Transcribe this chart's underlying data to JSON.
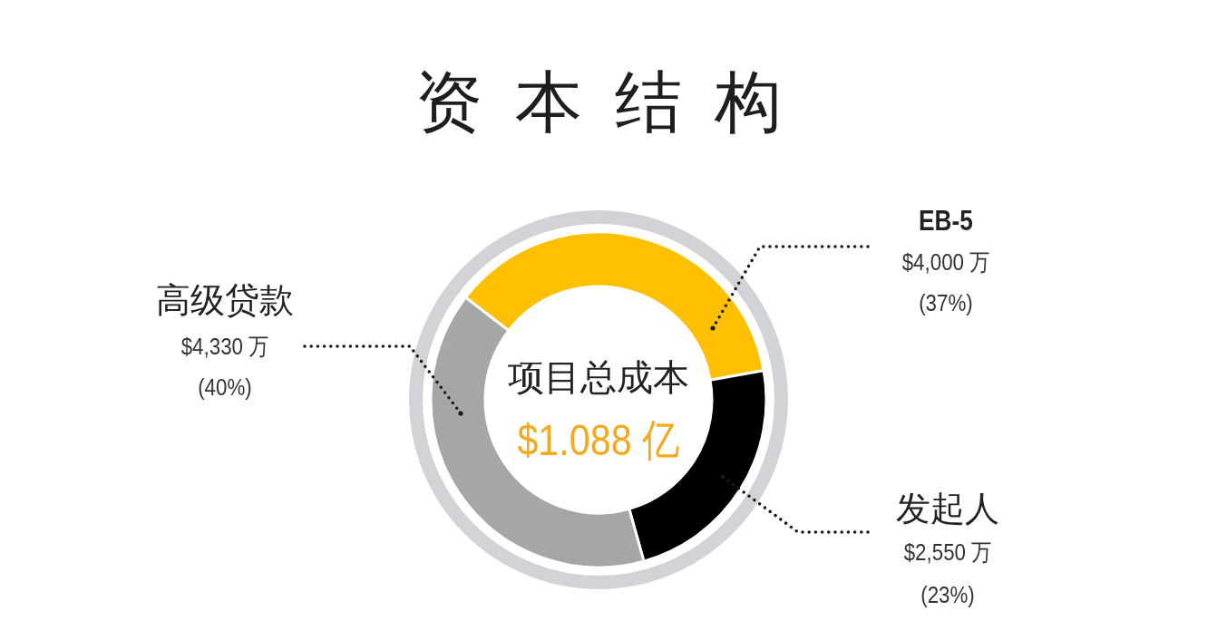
{
  "chart_data": {
    "type": "donut",
    "title": "资本结构",
    "categories": [
      "EB-5",
      "发起人",
      "高级贷款"
    ],
    "values": [
      4000,
      2550,
      4330
    ],
    "colors": [
      "#fec000",
      "#000000",
      "#a6a6a6"
    ],
    "value_labels": [
      "$4,000 万\n(37%)",
      "$2,550 万\n(23%)",
      "$4,330 万\n(40%)"
    ],
    "annotations": [
      "项目总成本",
      "$1.088 亿"
    ]
  }
}
